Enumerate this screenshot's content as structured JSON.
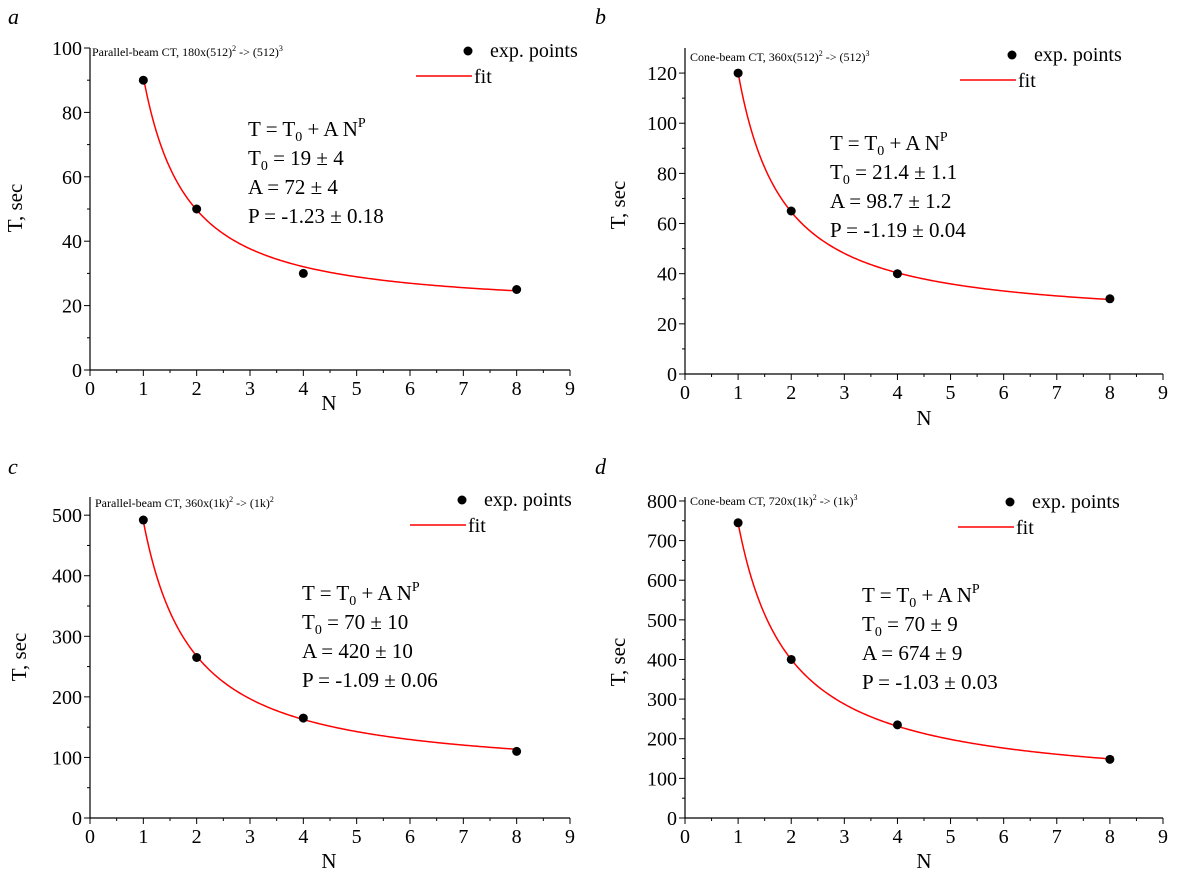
{
  "chart_data": [
    {
      "panel_letter": "a",
      "type": "scatter",
      "title": "Parallel-beam CT, 180x(512)",
      "title_sup1": "2",
      "title_mid": " -> (512)",
      "title_sup2": "3",
      "xlabel": "N",
      "ylabel": "T, sec",
      "xlim": [
        0,
        9
      ],
      "ylim": [
        0,
        100
      ],
      "xticks": [
        0,
        1,
        2,
        3,
        4,
        5,
        6,
        7,
        8,
        9
      ],
      "yticks": [
        0,
        20,
        40,
        60,
        80,
        100
      ],
      "series": [
        {
          "name": "exp. points",
          "x": [
            1,
            2,
            4,
            8
          ],
          "values": [
            90,
            50,
            30,
            25
          ],
          "color": "#000000"
        },
        {
          "name": "fit",
          "color": "#ff0000",
          "fit": {
            "T0": 19,
            "A": 72,
            "P": -1.23
          }
        }
      ],
      "annotation": {
        "eq_main": "T = T",
        "eq_sub": "0",
        "eq_tail": " + A N",
        "eq_sup": "P",
        "t0_label": "T",
        "t0_sub": "0",
        "t0_value": " = 19 ± 4",
        "a_line": "A = 72 ± 4",
        "p_line": "P = -1.23 ± 0.18"
      }
    },
    {
      "panel_letter": "b",
      "type": "scatter",
      "title": "Cone-beam CT, 360x(512)",
      "title_sup1": "2",
      "title_mid": " -> (512)",
      "title_sup2": "3",
      "xlabel": "N",
      "ylabel": "T, sec",
      "xlim": [
        0,
        9
      ],
      "ylim": [
        0,
        130
      ],
      "xticks": [
        0,
        1,
        2,
        3,
        4,
        5,
        6,
        7,
        8,
        9
      ],
      "yticks": [
        0,
        20,
        40,
        60,
        80,
        100,
        120
      ],
      "series": [
        {
          "name": "exp. points",
          "x": [
            1,
            2,
            4,
            8
          ],
          "values": [
            120,
            65,
            40,
            30
          ],
          "color": "#000000"
        },
        {
          "name": "fit",
          "color": "#ff0000",
          "fit": {
            "T0": 21.4,
            "A": 98.7,
            "P": -1.19
          }
        }
      ],
      "annotation": {
        "eq_main": "T = T",
        "eq_sub": "0",
        "eq_tail": " + A N",
        "eq_sup": "P",
        "t0_label": "T",
        "t0_sub": "0",
        "t0_value": " = 21.4 ± 1.1",
        "a_line": "A = 98.7 ± 1.2",
        "p_line": "P = -1.19 ± 0.04"
      }
    },
    {
      "panel_letter": "c",
      "type": "scatter",
      "title": "Parallel-beam CT, 360x(1k)",
      "title_sup1": "2",
      "title_mid": " -> (1k)",
      "title_sup2": "2",
      "xlabel": "N",
      "ylabel": "T, sec",
      "xlim": [
        0,
        9
      ],
      "ylim": [
        0,
        530
      ],
      "xticks": [
        0,
        1,
        2,
        3,
        4,
        5,
        6,
        7,
        8,
        9
      ],
      "yticks": [
        0,
        100,
        200,
        300,
        400,
        500
      ],
      "series": [
        {
          "name": "exp. points",
          "x": [
            1,
            2,
            4,
            8
          ],
          "values": [
            492,
            265,
            165,
            110
          ],
          "color": "#000000"
        },
        {
          "name": "fit",
          "color": "#ff0000",
          "fit": {
            "T0": 70,
            "A": 420,
            "P": -1.09
          }
        }
      ],
      "annotation": {
        "eq_main": "T = T",
        "eq_sub": "0",
        "eq_tail": " + A N",
        "eq_sup": "P",
        "t0_label": "T",
        "t0_sub": "0",
        "t0_value": " = 70 ± 10",
        "a_line": "A = 420 ± 10",
        "p_line": "P = -1.09 ± 0.06"
      }
    },
    {
      "panel_letter": "d",
      "type": "scatter",
      "title": "Cone-beam CT, 720x(1k)",
      "title_sup1": "2",
      "title_mid": " -> (1k)",
      "title_sup2": "3",
      "xlabel": "N",
      "ylabel": "T, sec",
      "xlim": [
        0,
        9
      ],
      "ylim": [
        0,
        810
      ],
      "xticks": [
        0,
        1,
        2,
        3,
        4,
        5,
        6,
        7,
        8,
        9
      ],
      "yticks": [
        0,
        100,
        200,
        300,
        400,
        500,
        600,
        700,
        800
      ],
      "series": [
        {
          "name": "exp. points",
          "x": [
            1,
            2,
            4,
            8
          ],
          "values": [
            745,
            400,
            235,
            148
          ],
          "color": "#000000"
        },
        {
          "name": "fit",
          "color": "#ff0000",
          "fit": {
            "T0": 70,
            "A": 674,
            "P": -1.03
          }
        }
      ],
      "annotation": {
        "eq_main": "T = T",
        "eq_sub": "0",
        "eq_tail": " + A N",
        "eq_sup": "P",
        "t0_label": "T",
        "t0_sub": "0",
        "t0_value": " = 70 ± 9",
        "a_line": "A = 674 ± 9",
        "p_line": "P = -1.03 ± 0.03"
      }
    }
  ]
}
